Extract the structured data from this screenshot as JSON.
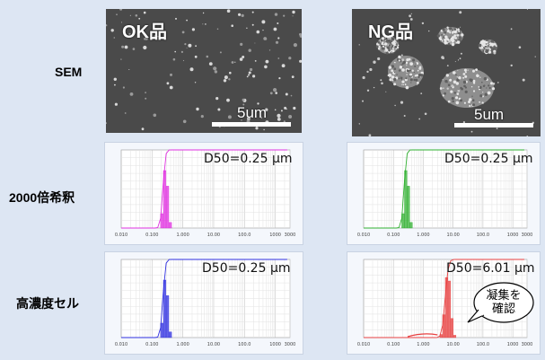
{
  "rows": {
    "sem": "SEM",
    "dilution": "2000倍希釈",
    "cell": "高濃度セル"
  },
  "sem_ok": {
    "title": "OK品",
    "scale": "5um"
  },
  "sem_ng": {
    "title": "NG品",
    "scale": "5um"
  },
  "charts": [
    {
      "d50": "D50=0.25 µm",
      "color": "#e030e0"
    },
    {
      "d50": "D50=0.25 µm",
      "color": "#30b030"
    },
    {
      "d50": "D50=0.25 µm",
      "color": "#3030e0"
    },
    {
      "d50": "D50=6.01 µm",
      "color": "#e84040"
    }
  ],
  "callout": {
    "line1": "凝集を",
    "line2": "確認"
  },
  "chart_data": [
    {
      "type": "bar",
      "title": "",
      "xlabel": "",
      "ylabel": "",
      "d50_um": 0.25,
      "ylim": [
        0,
        20
      ],
      "series_color": "#e030e0"
    },
    {
      "type": "bar",
      "title": "",
      "xlabel": "",
      "ylabel": "",
      "d50_um": 0.25,
      "ylim": [
        0,
        20
      ],
      "series_color": "#30b030"
    },
    {
      "type": "bar",
      "title": "",
      "xlabel": "",
      "ylabel": "",
      "d50_um": 0.25,
      "ylim": [
        0,
        20
      ],
      "series_color": "#3030e0"
    },
    {
      "type": "bar",
      "title": "",
      "xlabel": "",
      "ylabel": "",
      "d50_um": 6.01,
      "ylim": [
        0,
        20
      ],
      "series_color": "#e84040"
    }
  ]
}
